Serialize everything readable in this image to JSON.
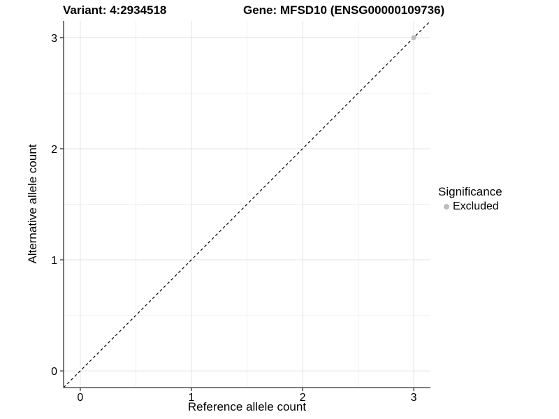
{
  "chart_data": {
    "type": "scatter",
    "title_left": "Variant: 4:2934518",
    "title_right": "Gene: MFSD10 (ENSG00000109736)",
    "xlabel": "Reference allele count",
    "ylabel": "Alternative allele count",
    "xlim": [
      -0.15,
      3.15
    ],
    "ylim": [
      -0.15,
      3.15
    ],
    "x_ticks": [
      0,
      1,
      2,
      3
    ],
    "y_ticks": [
      0,
      1,
      2,
      3
    ],
    "x_minor_ticks": [
      0.5,
      1.5,
      2.5
    ],
    "y_minor_ticks": [
      0.5,
      1.5,
      2.5
    ],
    "grid": true,
    "reference_line": {
      "style": "dashed",
      "from": [
        -0.15,
        -0.15
      ],
      "to": [
        3.15,
        3.15
      ],
      "equation": "y = x"
    },
    "series": [
      {
        "name": "Excluded",
        "marker": "circle",
        "color": "#bdbdbd",
        "points": [
          [
            3,
            3
          ]
        ]
      }
    ],
    "legend": {
      "title": "Significance",
      "position": "right",
      "entries": [
        {
          "label": "Excluded",
          "marker": "circle",
          "color": "#bdbdbd"
        }
      ]
    },
    "colors": {
      "background": "#ffffff",
      "grid_major": "#e3e3e3",
      "grid_minor": "#f0f0f0",
      "axis_line": "#333333",
      "tick_mark": "#333333",
      "reference_line": "#000000",
      "text": "#000000",
      "point": "#bdbdbd"
    }
  }
}
